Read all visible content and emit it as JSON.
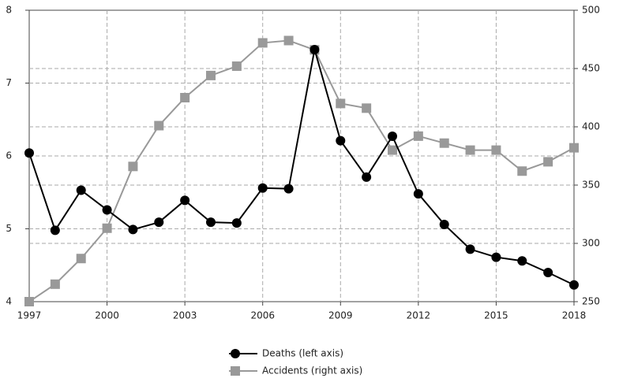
{
  "chart_data": {
    "type": "line",
    "x": [
      1997,
      1998,
      1999,
      2000,
      2001,
      2002,
      2003,
      2004,
      2005,
      2006,
      2007,
      2008,
      2009,
      2010,
      2011,
      2012,
      2013,
      2014,
      2015,
      2016,
      2017,
      2018
    ],
    "xlim": [
      1997,
      2018
    ],
    "xticks": [
      1997,
      2000,
      2003,
      2006,
      2009,
      2012,
      2015,
      2018
    ],
    "ylim": [
      4,
      8
    ],
    "yticks": [
      4,
      5,
      6,
      7,
      8
    ],
    "y2lim": [
      250,
      500
    ],
    "y2ticks": [
      250,
      300,
      350,
      400,
      450,
      500
    ],
    "grid": true,
    "legend": "bottom",
    "series": [
      {
        "name": "Deaths (left axis)",
        "color": "#000000",
        "marker": "circle",
        "values": [
          6.04,
          4.98,
          5.53,
          5.26,
          4.99,
          5.09,
          5.39,
          5.09,
          5.08,
          5.56,
          5.55,
          7.46,
          6.21,
          5.71,
          6.27,
          5.48,
          5.06,
          4.72,
          4.61,
          4.56,
          4.4,
          4.23
        ]
      },
      {
        "name": "Accidents (right axis)",
        "color": "#999999",
        "marker": "square",
        "axis": "y2",
        "values": [
          250,
          265,
          287,
          313,
          366,
          401,
          425,
          444,
          452,
          472,
          474,
          466,
          420,
          416,
          380,
          392,
          386,
          380,
          380,
          362,
          370,
          382
        ]
      }
    ]
  }
}
